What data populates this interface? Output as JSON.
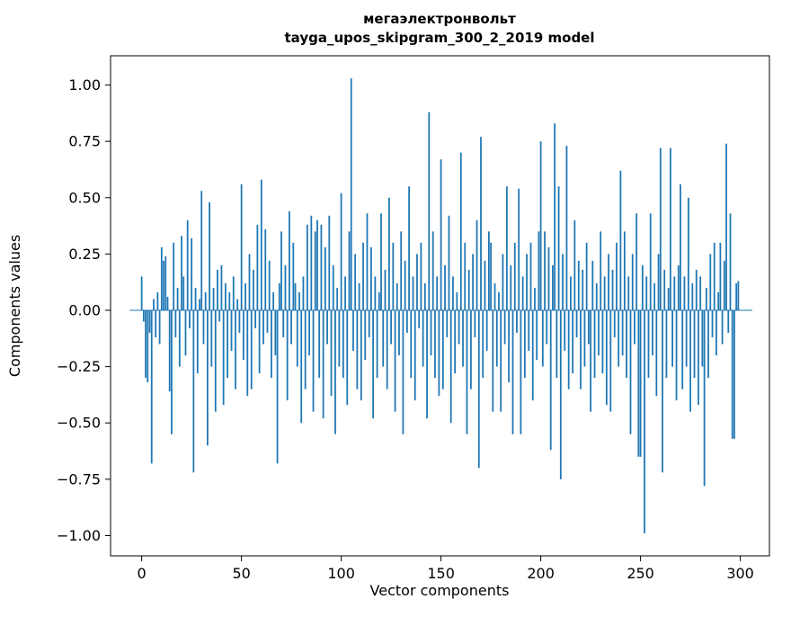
{
  "chart_data": {
    "type": "bar",
    "title": "мегаэлектронвольт",
    "subtitle": "tayga_upos_skipgram_300_2_2019 model",
    "xlabel": "Vector components",
    "ylabel": "Components values",
    "bar_color": "#1f77b4",
    "frame_color": "#000000",
    "xlim": [
      -15.6,
      314.6
    ],
    "ylim": [
      -1.09,
      1.13
    ],
    "xticks": [
      0,
      50,
      100,
      150,
      200,
      250,
      300
    ],
    "xtick_labels": [
      "0",
      "50",
      "100",
      "150",
      "200",
      "250",
      "300"
    ],
    "yticks": [
      -1.0,
      -0.75,
      -0.5,
      -0.25,
      0.0,
      0.25,
      0.5,
      0.75,
      1.0
    ],
    "ytick_labels": [
      "−1.00",
      "−0.75",
      "−0.50",
      "−0.25",
      "0.00",
      "0.25",
      "0.50",
      "0.75",
      "1.00"
    ],
    "grid": false,
    "legend": "none",
    "values": [
      0.15,
      -0.05,
      -0.3,
      -0.32,
      -0.1,
      -0.68,
      0.05,
      -0.12,
      0.08,
      -0.15,
      0.28,
      0.22,
      0.24,
      0.06,
      -0.36,
      -0.55,
      0.3,
      -0.12,
      0.1,
      -0.25,
      0.33,
      0.15,
      -0.2,
      0.4,
      -0.08,
      0.32,
      -0.72,
      0.1,
      -0.28,
      0.05,
      0.53,
      -0.15,
      0.08,
      -0.6,
      0.48,
      -0.25,
      0.1,
      -0.45,
      0.18,
      -0.05,
      0.2,
      -0.42,
      0.12,
      -0.3,
      0.08,
      -0.18,
      0.15,
      -0.35,
      0.05,
      -0.1,
      0.56,
      -0.22,
      0.12,
      -0.38,
      0.25,
      -0.35,
      0.18,
      -0.08,
      0.38,
      -0.28,
      0.58,
      -0.15,
      0.36,
      -0.1,
      0.22,
      -0.3,
      0.08,
      -0.2,
      -0.68,
      0.12,
      0.35,
      -0.12,
      0.2,
      -0.4,
      0.44,
      -0.15,
      0.3,
      0.12,
      -0.25,
      0.08,
      -0.5,
      0.15,
      -0.35,
      0.38,
      -0.2,
      0.42,
      -0.45,
      0.35,
      0.4,
      -0.3,
      0.38,
      -0.48,
      0.28,
      -0.15,
      0.42,
      -0.38,
      0.2,
      -0.55,
      0.1,
      -0.25,
      0.52,
      -0.3,
      0.15,
      -0.42,
      0.35,
      1.03,
      -0.18,
      0.25,
      -0.35,
      0.12,
      -0.4,
      0.3,
      -0.22,
      0.43,
      -0.12,
      0.28,
      -0.48,
      0.15,
      -0.3,
      0.08,
      0.43,
      -0.25,
      0.18,
      -0.35,
      0.5,
      -0.15,
      0.3,
      -0.45,
      0.12,
      -0.2,
      0.35,
      -0.55,
      0.22,
      -0.1,
      0.55,
      -0.3,
      0.15,
      -0.4,
      0.25,
      -0.08,
      0.3,
      -0.25,
      0.12,
      -0.48,
      0.88,
      -0.2,
      0.35,
      -0.3,
      0.15,
      -0.38,
      0.67,
      -0.35,
      0.2,
      -0.12,
      0.42,
      -0.5,
      0.15,
      -0.28,
      0.08,
      -0.15,
      0.7,
      -0.25,
      0.3,
      -0.55,
      0.18,
      -0.35,
      0.25,
      -0.12,
      0.4,
      -0.7,
      0.77,
      -0.3,
      0.22,
      -0.18,
      0.35,
      0.3,
      -0.45,
      0.12,
      -0.25,
      0.08,
      -0.45,
      0.25,
      -0.15,
      0.55,
      -0.32,
      0.2,
      -0.55,
      0.3,
      -0.1,
      0.54,
      -0.55,
      0.15,
      -0.3,
      0.25,
      -0.18,
      0.3,
      -0.4,
      0.1,
      -0.22,
      0.35,
      0.75,
      -0.25,
      0.35,
      -0.15,
      0.28,
      -0.62,
      0.2,
      0.83,
      -0.3,
      0.55,
      -0.75,
      0.25,
      -0.18,
      0.73,
      -0.35,
      0.15,
      -0.28,
      0.4,
      -0.12,
      0.22,
      -0.35,
      0.18,
      -0.25,
      0.3,
      -0.15,
      -0.45,
      0.22,
      -0.3,
      0.12,
      -0.2,
      0.35,
      -0.28,
      0.15,
      -0.42,
      0.25,
      -0.45,
      0.18,
      -0.12,
      0.3,
      -0.25,
      0.62,
      -0.2,
      0.35,
      -0.3,
      0.15,
      -0.55,
      0.25,
      -0.15,
      0.43,
      -0.65,
      -0.65,
      0.2,
      -0.99,
      0.15,
      -0.3,
      0.43,
      -0.2,
      0.12,
      -0.38,
      0.25,
      0.72,
      -0.72,
      0.18,
      -0.3,
      0.1,
      0.72,
      -0.25,
      0.15,
      -0.4,
      0.2,
      0.56,
      -0.35,
      0.15,
      -0.25,
      0.5,
      -0.45,
      0.12,
      -0.3,
      0.18,
      -0.42,
      0.15,
      -0.25,
      -0.78,
      0.1,
      -0.3,
      0.25,
      -0.12,
      0.3,
      -0.2,
      0.08,
      0.3,
      -0.15,
      0.22,
      0.74,
      -0.1,
      0.43,
      -0.57,
      -0.57,
      0.12,
      0.13
    ]
  }
}
